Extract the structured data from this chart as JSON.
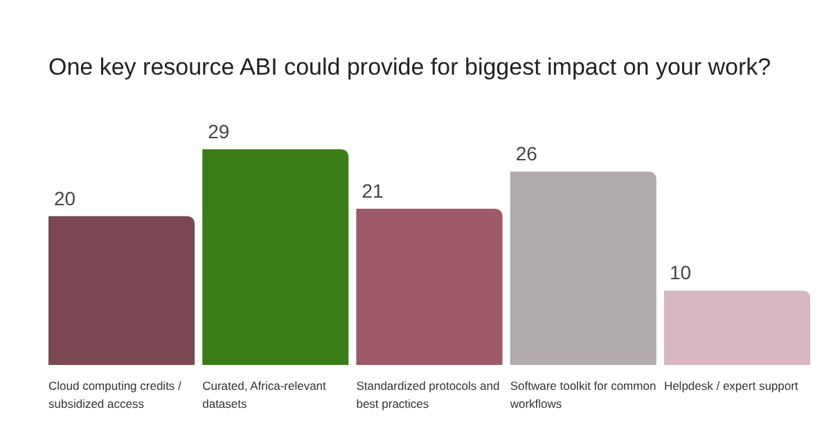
{
  "chart_data": {
    "type": "bar",
    "title": "One key resource ABI could provide for biggest impact on your work?",
    "categories": [
      "Cloud computing credits / subsidized access",
      "Curated, Africa-relevant datasets",
      "Standardized protocols and best practices",
      "Software toolkit for common workflows",
      "Helpdesk / expert support"
    ],
    "values": [
      20,
      29,
      21,
      26,
      10
    ],
    "colors": [
      "#7a4752",
      "#3a7d16",
      "#9e5a69",
      "#b1abad",
      "#d8b8c0"
    ],
    "data_labels": true
  }
}
